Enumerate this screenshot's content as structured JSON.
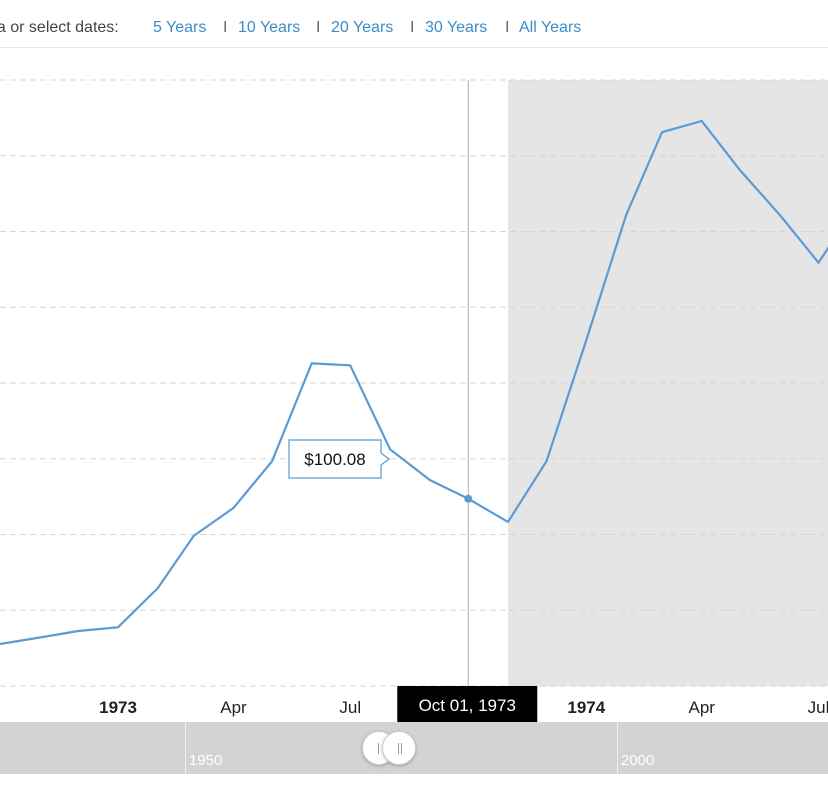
{
  "range_selector": {
    "prompt": "ea or select dates:",
    "options": [
      "5 Years",
      "10 Years",
      "20 Years",
      "30 Years",
      "All Years"
    ],
    "separator": "I"
  },
  "tooltip": {
    "value": "$100.08",
    "date": "Oct 01, 1973"
  },
  "navigator": {
    "labels": [
      "1950",
      "2000"
    ]
  },
  "colors": {
    "line": "#5b9bd5",
    "shade": "#e5e5e5",
    "tooltip_bg": "#000000",
    "link": "#3c8dc5"
  },
  "chart_data": {
    "type": "line",
    "x_ticks": [
      "1973",
      "Apr",
      "Jul",
      "1974",
      "Apr",
      "Jul"
    ],
    "x_ticks_bold": [
      true,
      false,
      false,
      true,
      false,
      false
    ],
    "series": [
      {
        "x": [
          "1972-10-01",
          "1972-11-01",
          "1972-12-01",
          "1973-01-01",
          "1973-02-01",
          "1973-03-01",
          "1973-04-01",
          "1973-05-01",
          "1973-06-01",
          "1973-07-01",
          "1973-08-01",
          "1973-09-01",
          "1973-10-01",
          "1973-11-01",
          "1973-12-01",
          "1974-01-01",
          "1974-02-01",
          "1974-03-01",
          "1974-04-01",
          "1974-05-01",
          "1974-06-01",
          "1974-07-01",
          "1974-08-01",
          "1974-09-01"
        ],
        "values": [
          84.5,
          85.2,
          85.9,
          86.3,
          90.5,
          96.1,
          99.1,
          104.1,
          114.6,
          114.4,
          105.4,
          102.1,
          100.08,
          97.6,
          104.1,
          117.1,
          130.5,
          139.4,
          140.6,
          135.3,
          130.5,
          125.4,
          131.8,
          130.5
        ]
      }
    ],
    "highlight": {
      "x": "1973-10-01",
      "value": 100.08
    },
    "shaded_from": "1973-11-01",
    "grid": "dashed-horizontal"
  }
}
